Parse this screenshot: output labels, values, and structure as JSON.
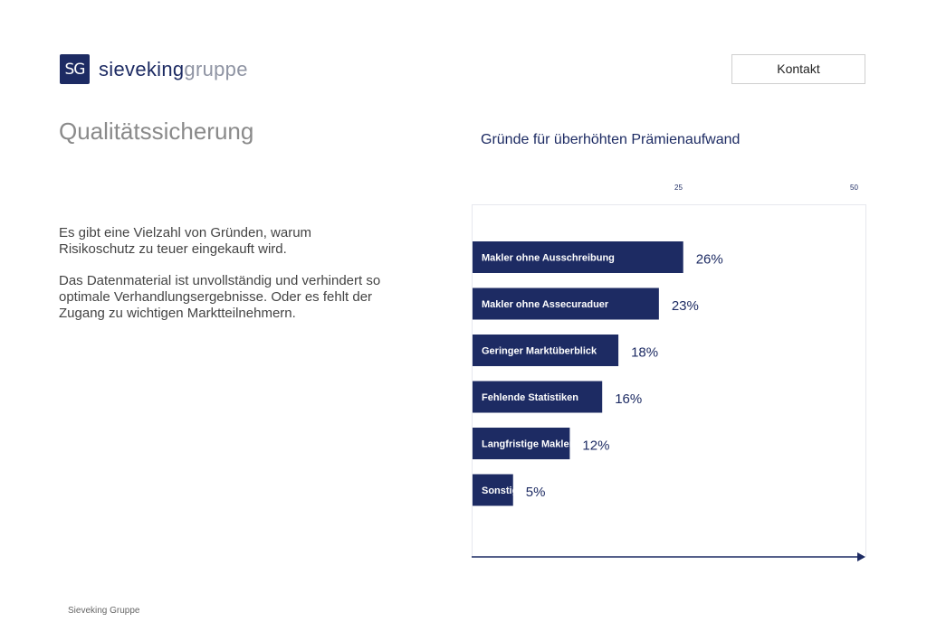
{
  "logo": {
    "badge": "SG",
    "name_part1": "sieveking",
    "name_part2": "gruppe"
  },
  "header": {
    "contact_label": "Kontakt"
  },
  "page": {
    "title": "Qualitätssicherung",
    "paragraph1_line1": "Es gibt eine Vielzahl von Gründen, warum",
    "paragraph1_line2": "Risikoschutz zu teuer eingekauft wird.",
    "paragraph2_line1": "Das Datenmaterial ist unvollständig und verhindert so",
    "paragraph2_line2": "optimale Verhandlungsergebnisse. Oder es fehlt der",
    "paragraph2_line3": "Zugang zu wichtigen  Marktteilnehmern."
  },
  "footer": {
    "text": "Sieveking Gruppe"
  },
  "colors": {
    "bar": "#1d2b63",
    "accent": "#1d2b63",
    "title_gray": "#8a8a8a"
  },
  "chart_data": {
    "type": "bar",
    "orientation": "horizontal",
    "title": "Gründe für überhöhten Prämienaufwand",
    "categories": [
      "Makler ohne Ausschreibung",
      "Makler ohne Assecuraduer",
      "Geringer Marktüberblick",
      "Fehlende Statistiken",
      "Langfristige Maklerbeziehung",
      "Sonstige"
    ],
    "values": [
      26,
      23,
      18,
      16,
      12,
      5
    ],
    "value_labels": [
      "26%",
      "23%",
      "18%",
      "16%",
      "12%",
      "5%"
    ],
    "xticks": [
      "25",
      "50"
    ],
    "xlim": [
      0,
      50
    ],
    "grid": false,
    "legend": "none"
  }
}
